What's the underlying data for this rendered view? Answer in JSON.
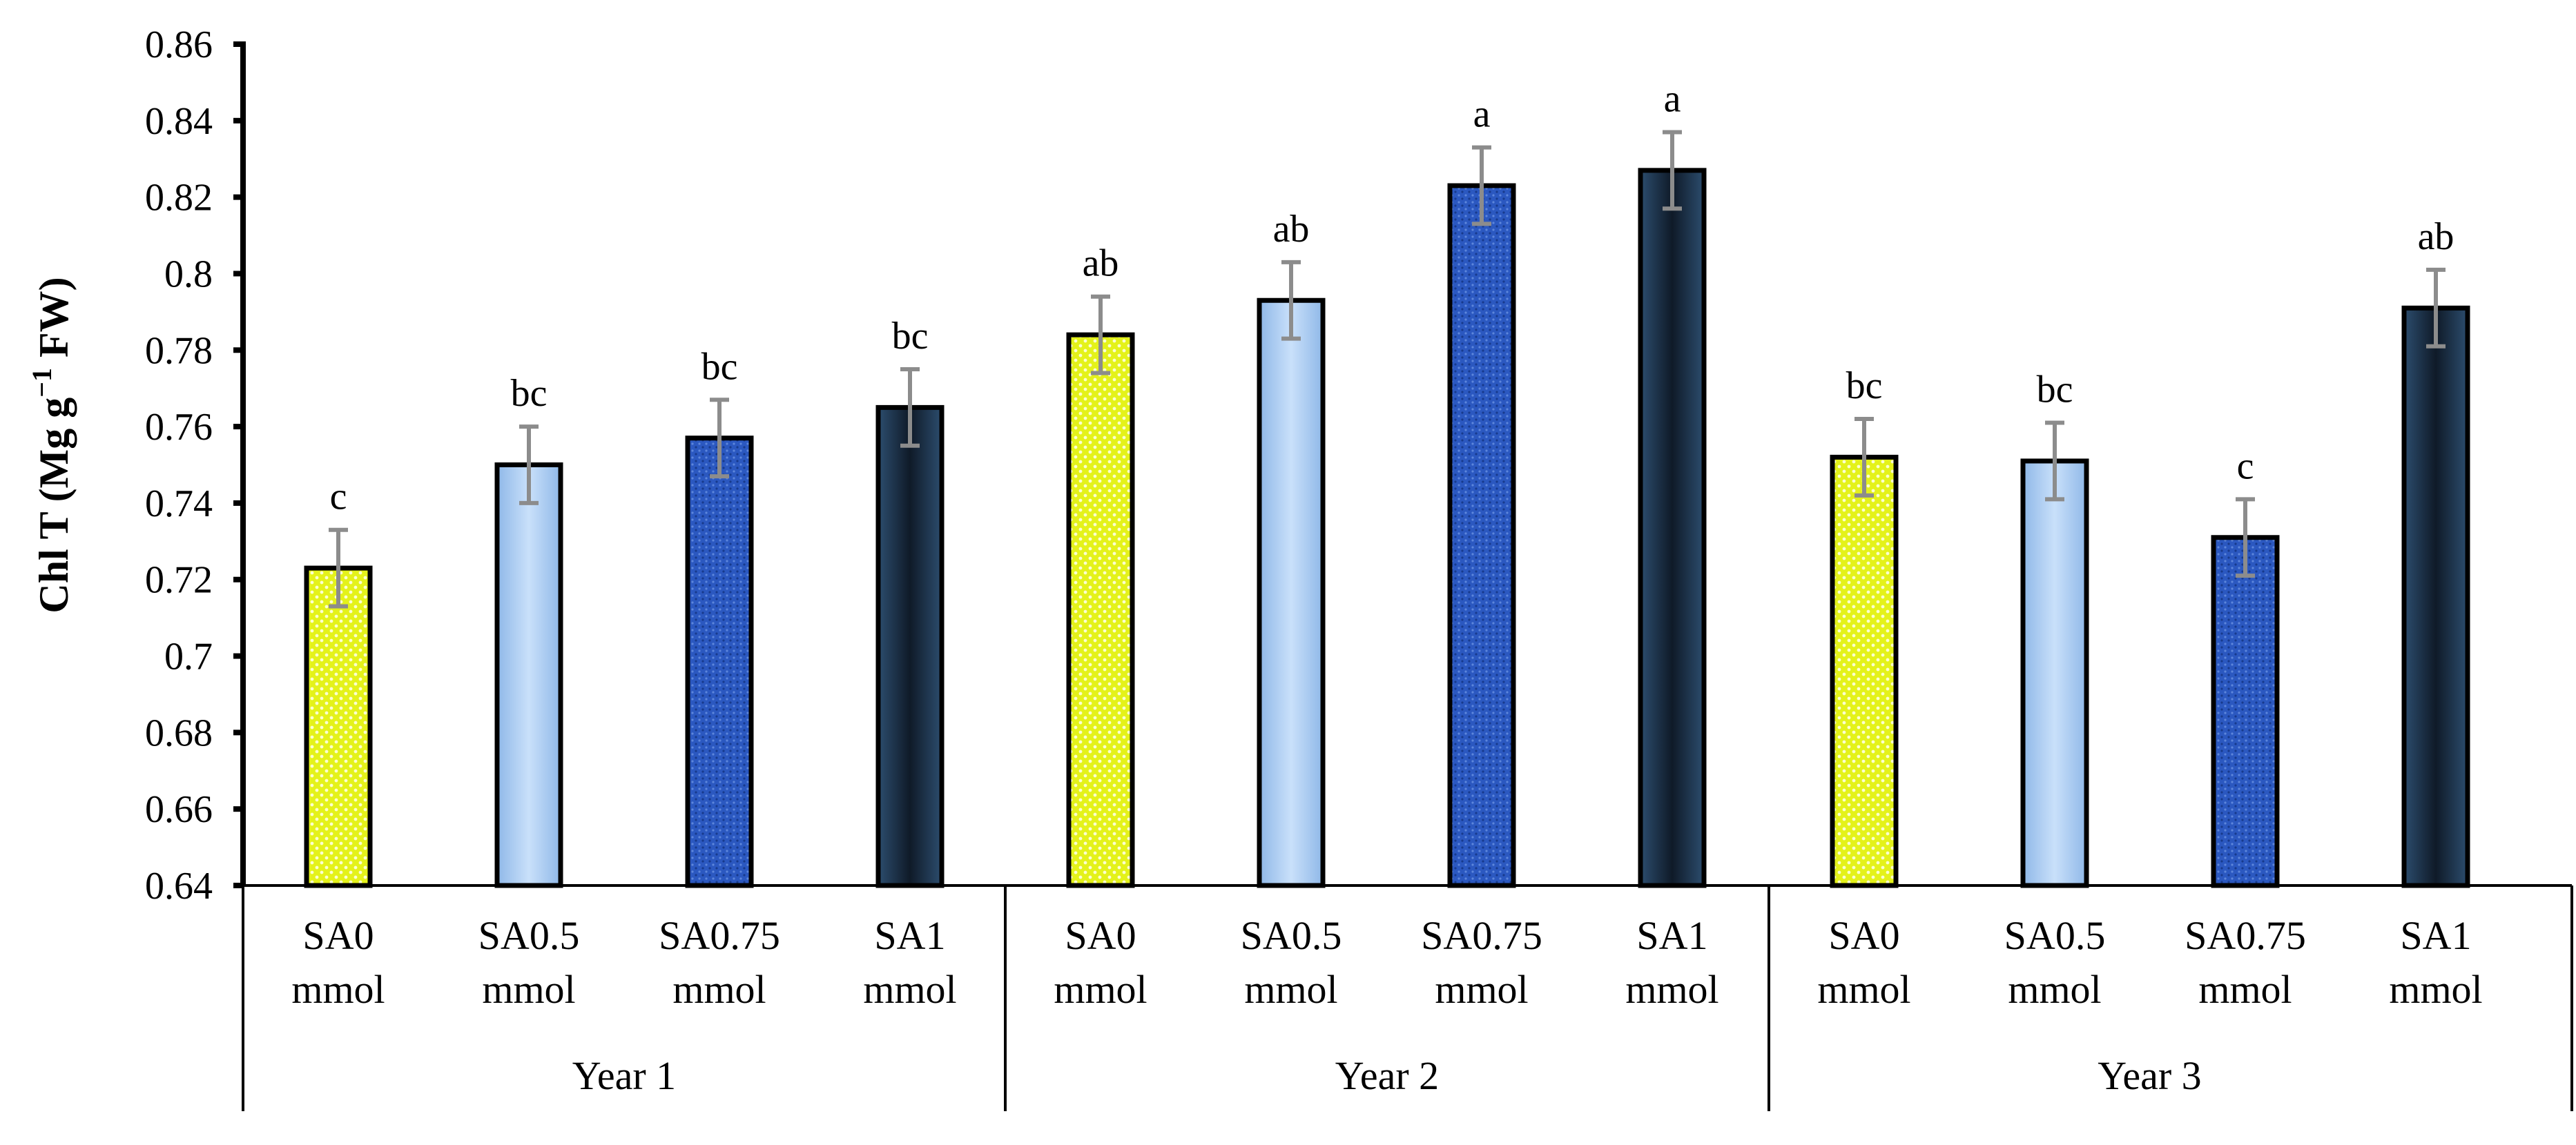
{
  "chart_data": {
    "type": "bar",
    "title": "",
    "xlabel": "",
    "ylabel": {
      "main": "Chl T (Mg g",
      "sup": "−1",
      "tail": " FW)"
    },
    "ylim": [
      0.64,
      0.86
    ],
    "yticks": [
      0.64,
      0.66,
      0.68,
      0.7,
      0.72,
      0.74,
      0.76,
      0.78,
      0.8,
      0.82,
      0.84,
      0.86
    ],
    "grid": false,
    "groups": [
      {
        "name": "Year 1",
        "bars": [
          {
            "label_line1": "SA0",
            "label_line2": "mmol",
            "value": 0.723,
            "error": 0.01,
            "sig": "c",
            "style": "yellow"
          },
          {
            "label_line1": "SA0.5",
            "label_line2": "mmol",
            "value": 0.75,
            "error": 0.01,
            "sig": "bc",
            "style": "light-blue"
          },
          {
            "label_line1": "SA0.75",
            "label_line2": "mmol",
            "value": 0.757,
            "error": 0.01,
            "sig": "bc",
            "style": "blue"
          },
          {
            "label_line1": "SA1",
            "label_line2": "mmol",
            "value": 0.765,
            "error": 0.01,
            "sig": "bc",
            "style": "navy"
          }
        ]
      },
      {
        "name": "Year 2",
        "bars": [
          {
            "label_line1": "SA0",
            "label_line2": "mmol",
            "value": 0.784,
            "error": 0.01,
            "sig": "ab",
            "style": "yellow"
          },
          {
            "label_line1": "SA0.5",
            "label_line2": "mmol",
            "value": 0.793,
            "error": 0.01,
            "sig": "ab",
            "style": "light-blue"
          },
          {
            "label_line1": "SA0.75",
            "label_line2": "mmol",
            "value": 0.823,
            "error": 0.01,
            "sig": "a",
            "style": "blue"
          },
          {
            "label_line1": "SA1",
            "label_line2": "mmol",
            "value": 0.827,
            "error": 0.01,
            "sig": "a",
            "style": "navy"
          }
        ]
      },
      {
        "name": "Year 3",
        "bars": [
          {
            "label_line1": "SA0",
            "label_line2": "mmol",
            "value": 0.752,
            "error": 0.01,
            "sig": "bc",
            "style": "yellow"
          },
          {
            "label_line1": "SA0.5",
            "label_line2": "mmol",
            "value": 0.751,
            "error": 0.01,
            "sig": "bc",
            "style": "light-blue"
          },
          {
            "label_line1": "SA0.75",
            "label_line2": "mmol",
            "value": 0.731,
            "error": 0.01,
            "sig": "c",
            "style": "blue"
          },
          {
            "label_line1": "SA1",
            "label_line2": "mmol",
            "value": 0.791,
            "error": 0.01,
            "sig": "ab",
            "style": "navy"
          }
        ]
      }
    ],
    "colors": {
      "yellow": "#e4f21a",
      "light-blue": "#a9ccf2",
      "blue": "#2b58c0",
      "navy": "#1a2a3d",
      "error_bar": "#8c8c8c",
      "axis": "#000000"
    }
  }
}
